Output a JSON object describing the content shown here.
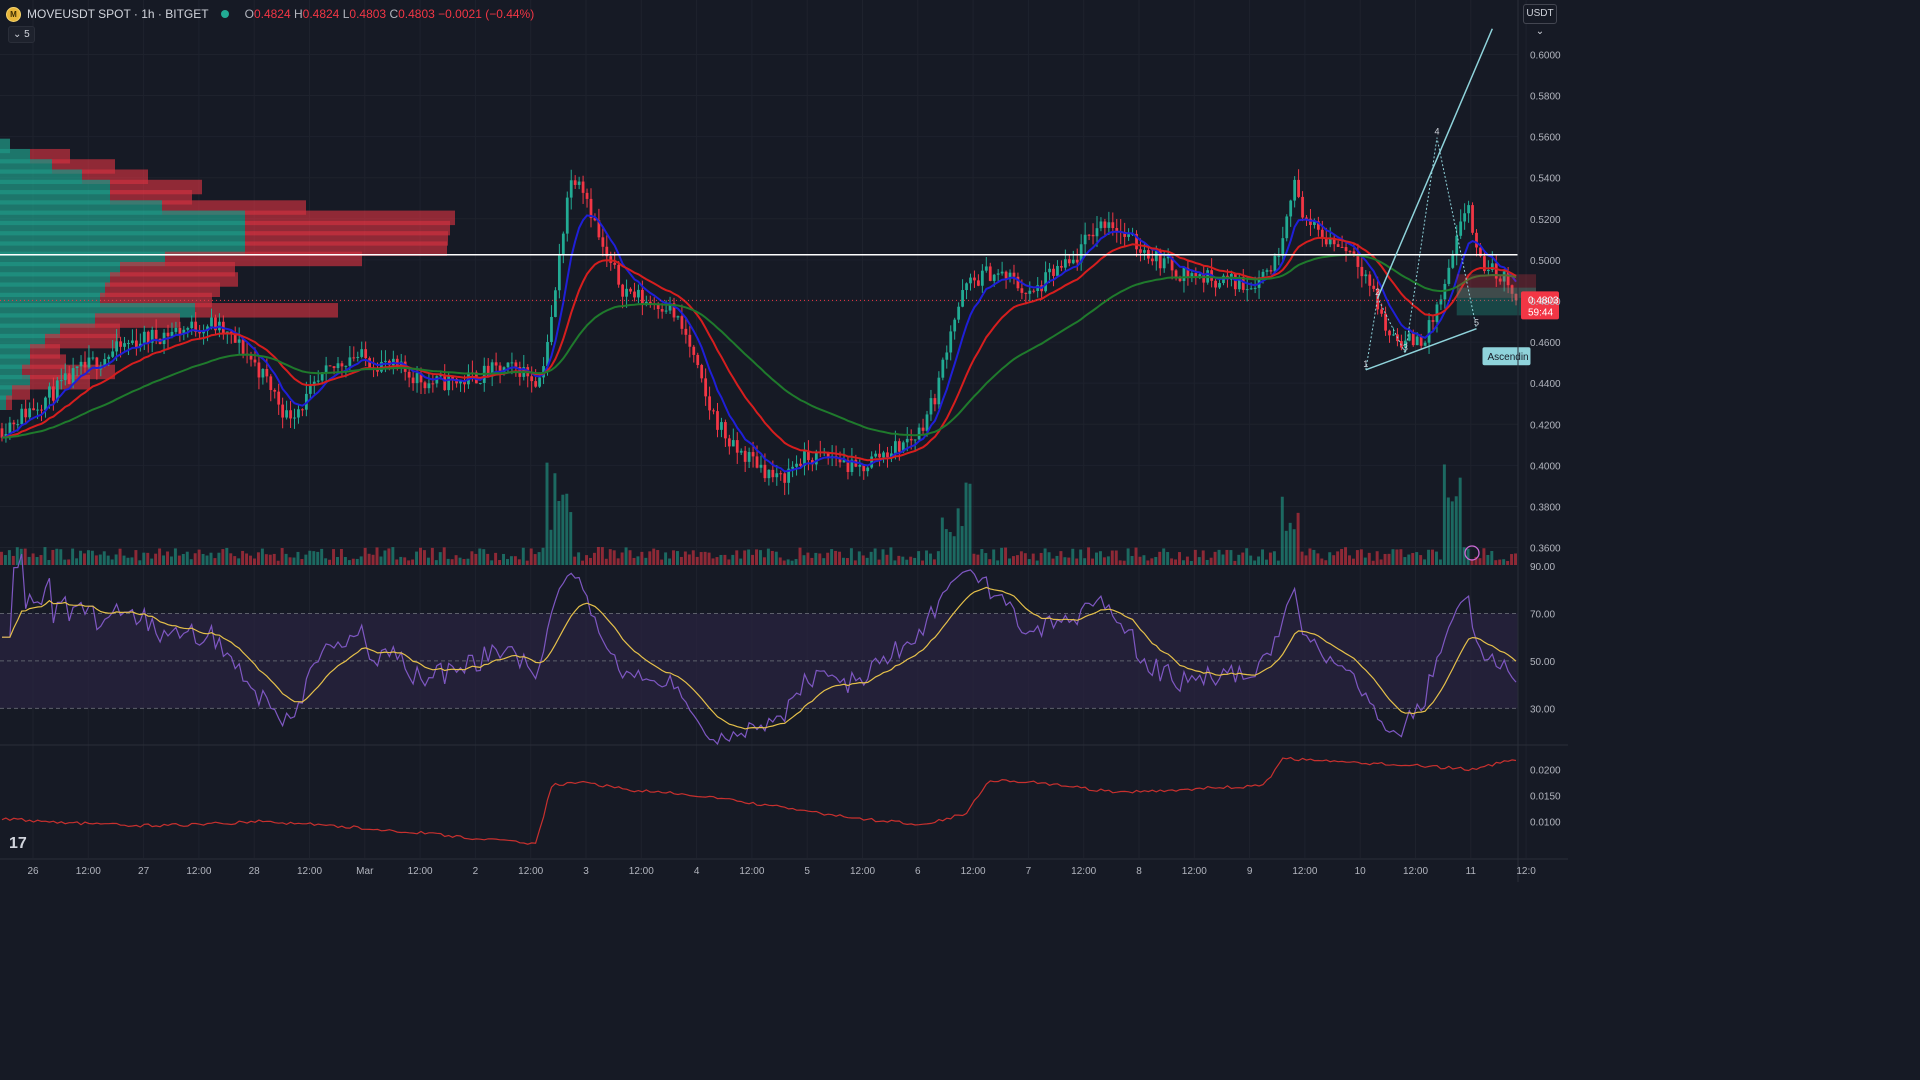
{
  "header": {
    "symbol": "MOVEUSDT SPOT · 1h · BITGET",
    "coin_glyph": "M",
    "o_label": "O",
    "o": "0.4824",
    "h_label": "H",
    "h": "0.4824",
    "l_label": "L",
    "l": "0.4803",
    "c_label": "C",
    "c": "0.4803",
    "change": "−0.0021 (−0.44%)"
  },
  "indicator_toggle": "⌄ 5",
  "currency_button": "USDT ⌄",
  "logo_text": "17",
  "colors": {
    "background": "#161a25",
    "grid": "#1e222d",
    "up": "#22ab94",
    "down": "#f23645",
    "ema_fast": "#1f1fd8",
    "ema_mid": "#d61e1e",
    "ema_slow": "#1f7a2c",
    "rsi": "#7e57c2",
    "rsi_ma": "#e5c04a",
    "rsi_band": "#2a2340",
    "atr": "#c8302e",
    "pattern": "#8fd3db"
  },
  "chart_data": [
    {
      "type": "candlestick",
      "title": "MOVEUSDT SPOT · 1h · BITGET",
      "y_ticks": [
        "0.6000",
        "0.5800",
        "0.5600",
        "0.5400",
        "0.5200",
        "0.5000",
        "0.4800",
        "0.4600",
        "0.4400",
        "0.4200",
        "0.4000",
        "0.3800",
        "0.3600"
      ],
      "ylim": [
        0.3515,
        0.6265
      ],
      "x_ticks": [
        "26",
        "12:00",
        "27",
        "12:00",
        "28",
        "12:00",
        "Mar",
        "12:00",
        "2",
        "12:00",
        "3",
        "12:00",
        "4",
        "12:00",
        "5",
        "12:00",
        "6",
        "12:00",
        "7",
        "12:00",
        "8",
        "12:00",
        "9",
        "12:00",
        "10",
        "12:00",
        "11",
        "12:0"
      ],
      "bars": 384,
      "price_path": [
        [
          0,
          0.418
        ],
        [
          12,
          0.431
        ],
        [
          25,
          0.447
        ],
        [
          40,
          0.46
        ],
        [
          55,
          0.466
        ],
        [
          65,
          0.469
        ],
        [
          75,
          0.456
        ],
        [
          82,
          0.441
        ],
        [
          88,
          0.424
        ],
        [
          93,
          0.43
        ],
        [
          100,
          0.444
        ],
        [
          108,
          0.454
        ],
        [
          116,
          0.45
        ],
        [
          124,
          0.446
        ],
        [
          132,
          0.44
        ],
        [
          142,
          0.441
        ],
        [
          152,
          0.446
        ],
        [
          160,
          0.447
        ],
        [
          166,
          0.441
        ],
        [
          170,
          0.471
        ],
        [
          175,
          0.535
        ],
        [
          178,
          0.543
        ],
        [
          181,
          0.53
        ],
        [
          186,
          0.503
        ],
        [
          192,
          0.486
        ],
        [
          199,
          0.48
        ],
        [
          206,
          0.478
        ],
        [
          212,
          0.461
        ],
        [
          218,
          0.43
        ],
        [
          226,
          0.408
        ],
        [
          233,
          0.402
        ],
        [
          240,
          0.392
        ],
        [
          246,
          0.402
        ],
        [
          252,
          0.404
        ],
        [
          258,
          0.404
        ],
        [
          264,
          0.397
        ],
        [
          270,
          0.404
        ],
        [
          278,
          0.41
        ],
        [
          283,
          0.415
        ],
        [
          289,
          0.436
        ],
        [
          293,
          0.466
        ],
        [
          298,
          0.487
        ],
        [
          305,
          0.494
        ],
        [
          312,
          0.491
        ],
        [
          318,
          0.482
        ],
        [
          325,
          0.494
        ],
        [
          331,
          0.498
        ],
        [
          337,
          0.514
        ],
        [
          342,
          0.52
        ],
        [
          348,
          0.51
        ],
        [
          356,
          0.502
        ],
        [
          364,
          0.494
        ],
        [
          370,
          0.492
        ],
        [
          378,
          0.49
        ],
        [
          386,
          0.488
        ],
        [
          394,
          0.5
        ],
        [
          399,
          0.538
        ],
        [
          404,
          0.516
        ],
        [
          410,
          0.51
        ],
        [
          418,
          0.504
        ],
        [
          423,
          0.488
        ],
        [
          428,
          0.465
        ],
        [
          434,
          0.46
        ],
        [
          440,
          0.462
        ],
        [
          446,
          0.486
        ],
        [
          450,
          0.51
        ],
        [
          453,
          0.53
        ],
        [
          456,
          0.5
        ],
        [
          462,
          0.493
        ],
        [
          466,
          0.49
        ],
        [
          468,
          0.4803
        ]
      ],
      "ema_fast_color": "#1f1fd8",
      "ema_mid_color": "#d61e1e",
      "ema_slow_color": "#1f7a2c",
      "horizontal_line": 0.5025,
      "last_price": "0.4803",
      "countdown": "59:44",
      "annotation": "Ascendin",
      "pattern_points": [
        {
          "label": "1",
          "x": 422,
          "y": 0.4465
        },
        {
          "label": "2",
          "x": 425,
          "y": 0.4815
        },
        {
          "label": "3",
          "x": 434,
          "y": 0.4545
        },
        {
          "label": "4",
          "x": 443,
          "y": 0.5595
        },
        {
          "label": "5",
          "x": 456,
          "y": 0.4665
        }
      ],
      "pattern_projection": {
        "x": 461,
        "y": 0.6125
      },
      "volume": "histogram"
    },
    {
      "type": "line",
      "title": "RSI",
      "y_ticks": [
        "90.00",
        "70.00",
        "50.00",
        "30.00"
      ],
      "ylim": [
        15,
        90
      ],
      "band": [
        30,
        70
      ],
      "midline": 50,
      "series": [
        {
          "values": "oscillator"
        },
        {
          "values": "moving average"
        }
      ]
    },
    {
      "type": "line",
      "title": "ATR",
      "y_ticks": [
        "0.0200",
        "0.0150",
        "0.0100"
      ],
      "ylim": [
        0.003,
        0.0245
      ],
      "path": [
        [
          0,
          0.0105
        ],
        [
          20,
          0.0098
        ],
        [
          40,
          0.0092
        ],
        [
          60,
          0.0094
        ],
        [
          80,
          0.01
        ],
        [
          95,
          0.0095
        ],
        [
          110,
          0.0088
        ],
        [
          130,
          0.0078
        ],
        [
          150,
          0.0065
        ],
        [
          165,
          0.0058
        ],
        [
          170,
          0.017
        ],
        [
          180,
          0.0175
        ],
        [
          195,
          0.016
        ],
        [
          215,
          0.015
        ],
        [
          240,
          0.0128
        ],
        [
          265,
          0.0105
        ],
        [
          285,
          0.0095
        ],
        [
          298,
          0.0115
        ],
        [
          305,
          0.018
        ],
        [
          320,
          0.0175
        ],
        [
          345,
          0.0155
        ],
        [
          375,
          0.0165
        ],
        [
          390,
          0.0168
        ],
        [
          396,
          0.0222
        ],
        [
          410,
          0.0215
        ],
        [
          430,
          0.021
        ],
        [
          455,
          0.02
        ],
        [
          468,
          0.022
        ]
      ]
    }
  ]
}
